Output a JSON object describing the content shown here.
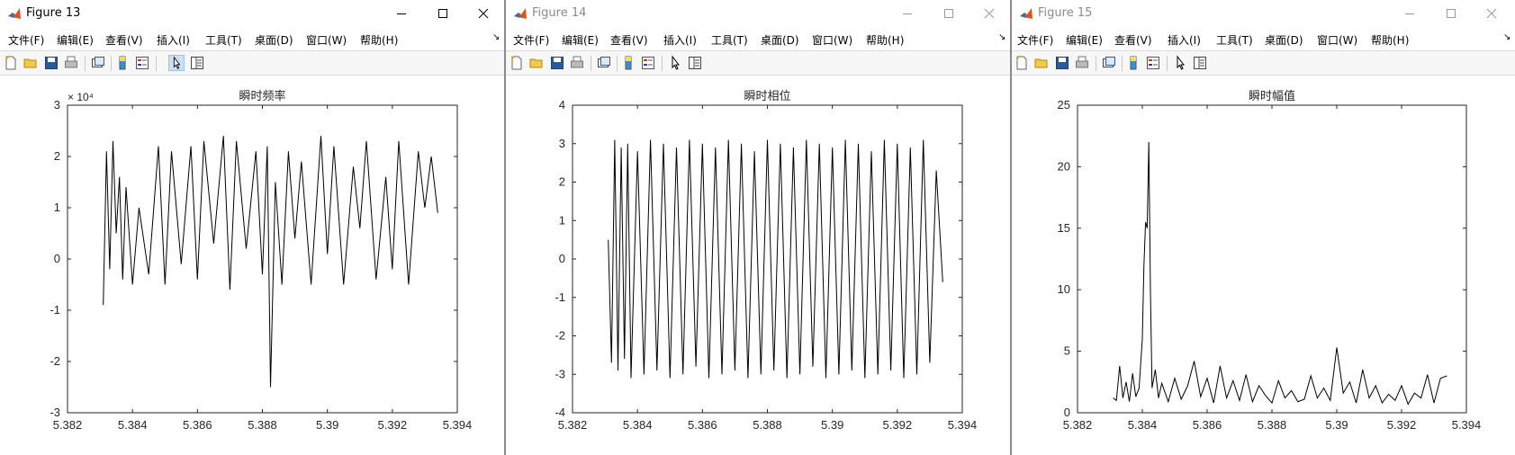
{
  "menu_items": [
    "文件(F)",
    "编辑(E)",
    "查看(V)",
    "插入(I)",
    "工具(T)",
    "桌面(D)",
    "窗口(W)",
    "帮助(H)"
  ],
  "dock_glyph": "↘",
  "windows": [
    {
      "title": "Figure 13",
      "active": true,
      "chart_data": {
        "type": "line",
        "title": "瞬时频率",
        "exponent_label": "× 10⁴",
        "xlim": [
          5.382,
          5.394
        ],
        "ylim": [
          -3,
          3
        ],
        "xticks": [
          5.382,
          5.384,
          5.386,
          5.388,
          5.39,
          5.392,
          5.394
        ],
        "yticks": [
          -3,
          -2,
          -1,
          0,
          1,
          2,
          3
        ],
        "xtick_labels": [
          "5.382",
          "5.384",
          "5.386",
          "5.388",
          "5.39",
          "5.392",
          "5.394"
        ],
        "ytick_labels": [
          "-3",
          "-2",
          "-1",
          "0",
          "1",
          "2",
          "3"
        ],
        "series": [
          {
            "x": [
              5.3831,
              5.3832,
              5.3833,
              5.3834,
              5.3835,
              5.3836,
              5.3837,
              5.3838,
              5.384,
              5.3842,
              5.3845,
              5.3848,
              5.385,
              5.3852,
              5.3855,
              5.3858,
              5.386,
              5.3862,
              5.3865,
              5.3868,
              5.387,
              5.3872,
              5.3875,
              5.3878,
              5.388,
              5.38815,
              5.38825,
              5.3884,
              5.3886,
              5.3888,
              5.389,
              5.3892,
              5.3895,
              5.3898,
              5.39,
              5.3902,
              5.3905,
              5.3908,
              5.391,
              5.3912,
              5.3915,
              5.3918,
              5.392,
              5.3922,
              5.3925,
              5.3928,
              5.393,
              5.3932,
              5.3934
            ],
            "y": [
              -0.9,
              2.1,
              -0.2,
              2.3,
              0.5,
              1.6,
              -0.4,
              1.4,
              -0.5,
              1.0,
              -0.3,
              2.2,
              -0.5,
              2.1,
              -0.1,
              2.2,
              -0.4,
              2.3,
              0.3,
              2.4,
              -0.6,
              2.3,
              0.2,
              2.1,
              -0.3,
              2.2,
              -2.5,
              1.5,
              -0.5,
              2.1,
              0.4,
              1.9,
              -0.5,
              2.4,
              0.1,
              2.2,
              -0.5,
              1.8,
              0.6,
              2.3,
              -0.4,
              1.6,
              -0.2,
              2.3,
              -0.5,
              2.1,
              1.0,
              2.0,
              0.9
            ]
          }
        ]
      }
    },
    {
      "title": "Figure 14",
      "active": false,
      "chart_data": {
        "type": "line",
        "title": "瞬时相位",
        "xlim": [
          5.382,
          5.394
        ],
        "ylim": [
          -4,
          4
        ],
        "xticks": [
          5.382,
          5.384,
          5.386,
          5.388,
          5.39,
          5.392,
          5.394
        ],
        "yticks": [
          -4,
          -3,
          -2,
          -1,
          0,
          1,
          2,
          3,
          4
        ],
        "xtick_labels": [
          "5.382",
          "5.384",
          "5.386",
          "5.388",
          "5.39",
          "5.392",
          "5.394"
        ],
        "ytick_labels": [
          "-4",
          "-3",
          "-2",
          "-1",
          "0",
          "1",
          "2",
          "3",
          "4"
        ],
        "series": [
          {
            "x": [
              5.3831,
              5.3832,
              5.3833,
              5.3834,
              5.3835,
              5.3836,
              5.3837,
              5.3838,
              5.384,
              5.3842,
              5.3844,
              5.3846,
              5.3848,
              5.385,
              5.3852,
              5.3854,
              5.3856,
              5.3858,
              5.386,
              5.3862,
              5.3864,
              5.3866,
              5.3868,
              5.387,
              5.3872,
              5.3874,
              5.3876,
              5.3878,
              5.388,
              5.3882,
              5.3884,
              5.3886,
              5.3888,
              5.389,
              5.3892,
              5.3894,
              5.3896,
              5.3898,
              5.39,
              5.3902,
              5.3904,
              5.3906,
              5.3908,
              5.391,
              5.3912,
              5.3914,
              5.3916,
              5.3918,
              5.392,
              5.3922,
              5.3924,
              5.3926,
              5.3928,
              5.393,
              5.3932,
              5.3934
            ],
            "y": [
              0.5,
              -2.7,
              3.1,
              -2.9,
              2.9,
              -2.6,
              3.0,
              -3.1,
              2.8,
              -3.0,
              3.1,
              -2.9,
              3.0,
              -3.1,
              2.9,
              -3.0,
              3.1,
              -2.8,
              3.0,
              -3.1,
              2.9,
              -3.0,
              3.1,
              -2.9,
              3.0,
              -3.1,
              2.8,
              -3.0,
              3.1,
              -2.9,
              3.0,
              -3.1,
              2.9,
              -3.0,
              3.1,
              -2.8,
              3.0,
              -3.1,
              2.9,
              -3.0,
              3.1,
              -2.9,
              3.0,
              -3.1,
              2.8,
              -3.0,
              3.1,
              -2.9,
              3.0,
              -3.1,
              2.9,
              -3.0,
              3.1,
              -2.7,
              2.3,
              -0.6
            ]
          }
        ]
      }
    },
    {
      "title": "Figure 15",
      "active": false,
      "chart_data": {
        "type": "line",
        "title": "瞬时幅值",
        "xlim": [
          5.382,
          5.394
        ],
        "ylim": [
          0,
          25
        ],
        "xticks": [
          5.382,
          5.384,
          5.386,
          5.388,
          5.39,
          5.392,
          5.394
        ],
        "yticks": [
          0,
          5,
          10,
          15,
          20,
          25
        ],
        "xtick_labels": [
          "5.382",
          "5.384",
          "5.386",
          "5.388",
          "5.39",
          "5.392",
          "5.394"
        ],
        "ytick_labels": [
          "0",
          "5",
          "10",
          "15",
          "20",
          "25"
        ],
        "series": [
          {
            "x": [
              5.3831,
              5.3832,
              5.3833,
              5.3834,
              5.3835,
              5.3836,
              5.3837,
              5.3838,
              5.3839,
              5.384,
              5.38405,
              5.3841,
              5.38415,
              5.3842,
              5.38425,
              5.3843,
              5.3844,
              5.3845,
              5.3846,
              5.3848,
              5.385,
              5.3852,
              5.3854,
              5.3856,
              5.3858,
              5.386,
              5.3862,
              5.3864,
              5.3866,
              5.3868,
              5.387,
              5.3872,
              5.3874,
              5.3876,
              5.3878,
              5.388,
              5.3882,
              5.3884,
              5.3886,
              5.3888,
              5.389,
              5.3892,
              5.3894,
              5.3896,
              5.3898,
              5.39,
              5.3902,
              5.3904,
              5.3906,
              5.3908,
              5.391,
              5.3912,
              5.3914,
              5.3916,
              5.3918,
              5.392,
              5.3922,
              5.3924,
              5.3926,
              5.3928,
              5.393,
              5.3932,
              5.3934
            ],
            "y": [
              1.2,
              1.0,
              3.8,
              1.2,
              2.5,
              0.9,
              3.2,
              1.3,
              2.0,
              6.0,
              12.0,
              15.5,
              15.0,
              22.0,
              10.0,
              2.0,
              3.5,
              1.2,
              2.4,
              0.9,
              2.8,
              1.1,
              2.2,
              4.2,
              1.3,
              2.8,
              0.8,
              3.8,
              1.2,
              2.6,
              1.0,
              3.1,
              0.9,
              2.2,
              1.4,
              0.8,
              2.6,
              1.2,
              1.8,
              0.9,
              1.1,
              3.0,
              1.2,
              2.0,
              1.0,
              5.3,
              1.6,
              2.5,
              0.8,
              3.5,
              1.2,
              2.2,
              0.8,
              1.5,
              1.0,
              2.2,
              0.7,
              1.6,
              1.2,
              3.1,
              0.8,
              2.8,
              3.0
            ]
          }
        ]
      }
    }
  ]
}
